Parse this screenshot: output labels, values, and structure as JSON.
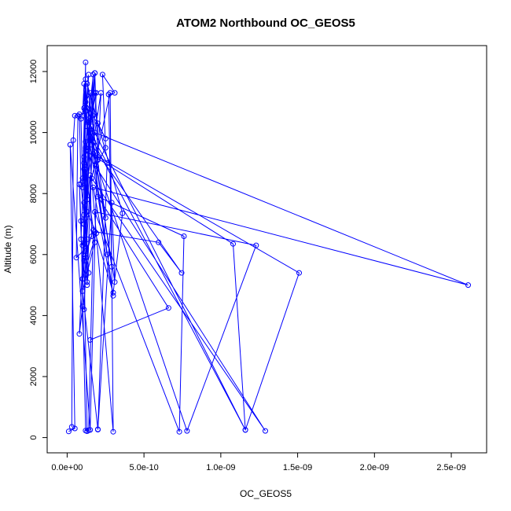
{
  "chart_data": {
    "type": "scatter",
    "title": "ATOM2 Northbound OC_GEOS5",
    "xlabel": "OC_GEOS5",
    "ylabel": "Altitude (m)",
    "xlim": [
      -1.3e-10,
      2.73e-09
    ],
    "ylim": [
      -500,
      12850
    ],
    "xticks": [
      {
        "value": 0,
        "label": "0.0e+00"
      },
      {
        "value": 5e-10,
        "label": "5.0e-10"
      },
      {
        "value": 1e-09,
        "label": "1.0e-09"
      },
      {
        "value": 1.5e-09,
        "label": "1.5e-09"
      },
      {
        "value": 2e-09,
        "label": "2.0e-09"
      },
      {
        "value": 2.5e-09,
        "label": "2.5e-09"
      }
    ],
    "yticks": [
      {
        "value": 0,
        "label": "0"
      },
      {
        "value": 2000,
        "label": "2000"
      },
      {
        "value": 4000,
        "label": "4000"
      },
      {
        "value": 6000,
        "label": "6000"
      },
      {
        "value": 8000,
        "label": "8000"
      },
      {
        "value": 10000,
        "label": "10000"
      },
      {
        "value": 12000,
        "label": "12000"
      }
    ],
    "grid": false,
    "legend": "none",
    "color": "#0000ff",
    "series": [
      {
        "connected": true,
        "x": [
          1e-11,
          5e-11,
          2e-11,
          1.5e-10,
          2e-10,
          2.5e-10,
          1.2e-10,
          1.5e-10,
          1.1e-10,
          1.3e-10,
          1.1e-10,
          8e-11,
          1e-10,
          1.2e-10,
          1.5e-10,
          1.2e-10,
          1.3e-10,
          1.2e-10,
          1e-10,
          1.1e-10,
          1.5e-10,
          1.8e-10,
          1.1e-10,
          1.2e-10,
          1.4e-10,
          1e-10,
          1.2e-10,
          1.7e-10,
          1.1e-10,
          1.6e-10,
          1.5e-10,
          1.1e-10,
          1.2e-10,
          1e-10,
          1.8e-10,
          1.3e-10,
          1.1e-10,
          1.8e-10,
          1.2e-10,
          1.9e-10,
          1.2e-10,
          1.3e-10,
          1.9e-10,
          1e-10,
          1.2e-10,
          1.8e-10,
          1e-10,
          2e-10
        ],
        "y": [
          200,
          300,
          9600,
          250,
          10300,
          9800,
          11000,
          10500,
          4200,
          6500,
          7000,
          3400,
          4300,
          11000,
          11300,
          9500,
          10200,
          11750,
          10550,
          11600,
          10100,
          11300,
          9000,
          10700,
          11900,
          8500,
          9500,
          11900,
          7000,
          10200,
          9800,
          6000,
          12300,
          8200,
          11950,
          5000,
          10800,
          10600,
          5900,
          11300,
          9700,
          7400,
          6700,
          5200,
          8800,
          6400,
          4800,
          270
        ]
      },
      {
        "connected": true,
        "x": [
          3e-11,
          4e-11,
          5e-11,
          8e-11,
          9e-11,
          1.1e-10,
          1.2e-10,
          6e-11,
          7e-11,
          9e-11,
          1e-10,
          1.1e-10,
          1.3e-10,
          1.4e-10,
          1.2e-10,
          1e-10,
          9e-11,
          1.1e-10,
          1.3e-10,
          1.5e-10,
          1.6e-10,
          1.2e-10,
          1e-10,
          8e-11,
          9e-11,
          1.2e-10,
          1.4e-10,
          1.7e-10,
          1.1e-10,
          1.3e-10
        ],
        "y": [
          350,
          9750,
          10550,
          10600,
          8300,
          7300,
          6200,
          5900,
          10550,
          10450,
          8400,
          9200,
          5100,
          5400,
          7200,
          6300,
          6500,
          8800,
          7800,
          8600,
          6600,
          6100,
          5200,
          8300,
          7100,
          230,
          240,
          6800,
          5800,
          210
        ]
      },
      {
        "connected": true,
        "x": [
          1.5e-10,
          6.6e-10,
          2e-10,
          7.6e-10,
          7.3e-10,
          1.8e-10,
          1.23e-09,
          7.8e-10,
          1.7e-10,
          1.51e-09,
          1.16e-09,
          1.8e-10,
          2.61e-09,
          1.7e-10,
          3e-10,
          1.4e-10,
          2.5e-10,
          1.3e-10,
          3.6e-10,
          3e-10,
          1.8e-10,
          5.95e-10,
          7.45e-10,
          1.6e-10,
          2.6e-10,
          1.3e-10,
          3e-10,
          2.8e-10,
          1.6e-10,
          1.29e-09,
          1.2e-10,
          1.08e-09,
          1.16e-09,
          1.7e-10,
          2.9e-10,
          2.7e-10,
          3.1e-10,
          2.3e-10,
          2.5e-10,
          1.9e-10,
          3.1e-10,
          2.9e-10,
          2e-10,
          2.6e-10,
          1.5e-10,
          1.8e-10,
          2e-10,
          2.2e-10,
          1.1e-10,
          1.5e-10
        ],
        "y": [
          3200,
          4250,
          7900,
          6600,
          190,
          7400,
          6300,
          220,
          9300,
          5400,
          250,
          10000,
          5000,
          8200,
          4650,
          10350,
          7200,
          11600,
          7350,
          4750,
          6750,
          6400,
          5400,
          9600,
          6000,
          10200,
          190,
          11300,
          8500,
          220,
          9400,
          6350,
          250,
          9700,
          5600,
          11250,
          11300,
          11900,
          9500,
          8900,
          5100,
          7700,
          260,
          9000,
          10000,
          11950,
          9100,
          11300,
          7700,
          10400
        ]
      }
    ]
  }
}
